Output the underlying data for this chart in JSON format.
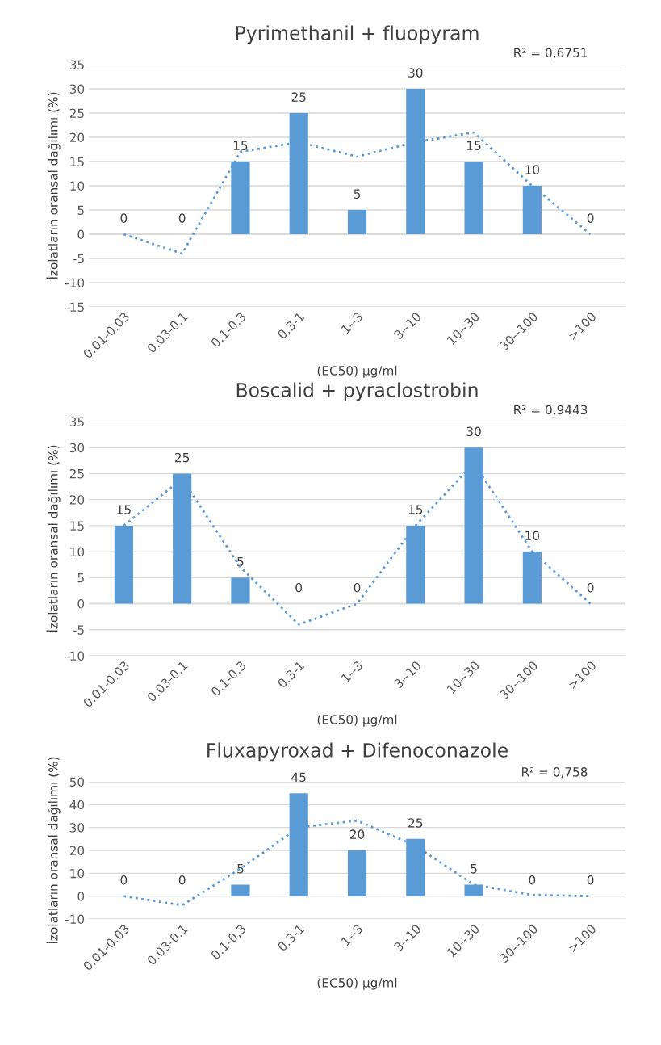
{
  "chart_data": [
    {
      "type": "bar",
      "title": "Pyrimethanil + fluopyram",
      "xlabel": "(EC50) µg/ml",
      "ylabel": "İzolatların oransal dağılımı (%)",
      "categories": [
        "0.01-0.03",
        "0.03-0.1",
        "0.1-0.3",
        "0.3-1",
        "1--3",
        "3--10",
        "10--30",
        "30--100",
        ">100"
      ],
      "series": [
        {
          "color": "#5b9bd5",
          "values": [
            0,
            0,
            15,
            25,
            5,
            30,
            15,
            10,
            0
          ],
          "value_labels": [
            "0",
            "0",
            "15",
            "25",
            "5",
            "30",
            "15",
            "10",
            "0"
          ]
        },
        {
          "type": "line",
          "color": "#5b9bd5",
          "line_style": "dotted",
          "values": [
            0,
            -4,
            17,
            19,
            16,
            19,
            21,
            10,
            0
          ]
        }
      ],
      "ylim": [
        -15,
        35
      ],
      "yticks": [
        -15,
        -10,
        -5,
        0,
        5,
        10,
        15,
        20,
        25,
        30,
        35
      ],
      "grid": "y",
      "annotations": [
        "R² = 0,6751"
      ]
    },
    {
      "type": "bar",
      "title": "Boscalid + pyraclostrobin",
      "xlabel": "(EC50) µg/ml",
      "ylabel": "İzolatların oransal dağılımı (%)",
      "categories": [
        "0.01-0.03",
        "0.03-0.1",
        "0.1-0.3",
        "0.3-1",
        "1--3",
        "3--10",
        "10--30",
        "30--100",
        ">100"
      ],
      "series": [
        {
          "color": "#5b9bd5",
          "values": [
            15,
            25,
            5,
            0,
            0,
            15,
            30,
            10,
            0
          ],
          "value_labels": [
            "15",
            "25",
            "5",
            "0",
            "0",
            "15",
            "30",
            "10",
            "0"
          ]
        },
        {
          "type": "line",
          "color": "#5b9bd5",
          "line_style": "dotted",
          "values": [
            15,
            24,
            7,
            -4,
            0,
            15,
            27,
            10,
            0
          ]
        }
      ],
      "ylim": [
        -10,
        35
      ],
      "yticks": [
        -10,
        -5,
        0,
        5,
        10,
        15,
        20,
        25,
        30,
        35
      ],
      "grid": "y",
      "annotations": [
        "R² = 0,9443"
      ]
    },
    {
      "type": "bar",
      "title": "Fluxapyroxad + Difenoconazole",
      "xlabel": "(EC50) µg/ml",
      "ylabel": "İzolatların oransal dağılımı (%)",
      "categories": [
        "0.01-0.03",
        "0.03-0.1",
        "0.1-0,3",
        "0.3-1",
        "1--3",
        "3--10",
        "10--30",
        "30--100",
        ">100"
      ],
      "series": [
        {
          "color": "#5b9bd5",
          "values": [
            0,
            0,
            5,
            45,
            20,
            25,
            5,
            0,
            0
          ],
          "value_labels": [
            "0",
            "0",
            "5",
            "45",
            "20",
            "25",
            "5",
            "0",
            "0"
          ]
        },
        {
          "type": "line",
          "color": "#5b9bd5",
          "line_style": "dotted",
          "values": [
            0,
            -4,
            12,
            30,
            33,
            22,
            5,
            0.5,
            0
          ]
        }
      ],
      "ylim": [
        -10,
        50
      ],
      "yticks": [
        -10,
        0,
        10,
        20,
        30,
        40,
        50
      ],
      "grid": "y",
      "annotations": [
        "R² = 0,758"
      ]
    }
  ]
}
